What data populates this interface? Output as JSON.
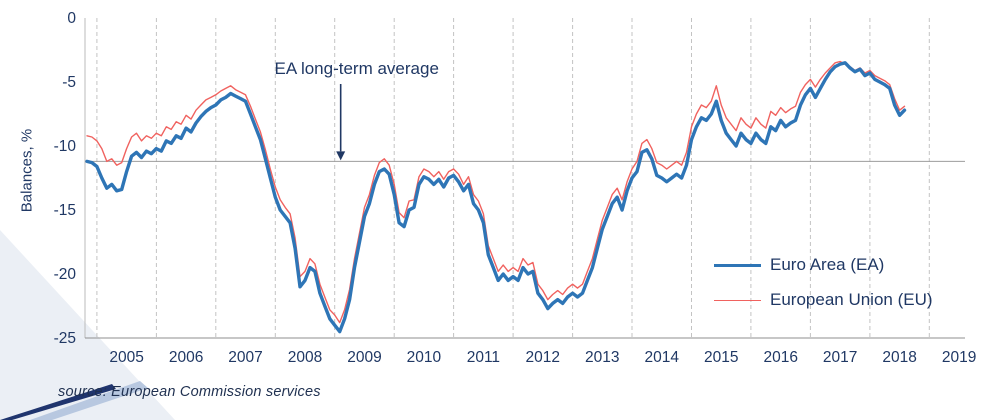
{
  "colors": {
    "accent_navy": "#203864",
    "grid": "#c3c3c3",
    "avg_line": "#9d9d9d",
    "bottom_axis": "#8f8f8f",
    "left_axis": "#bbbbbb"
  },
  "chart_data": {
    "type": "line",
    "title": "",
    "ylabel": "Balances, %",
    "xlim": [
      2004.8,
      2019.6
    ],
    "ylim": [
      -25,
      0
    ],
    "start_year": 2004.8333,
    "points_per_year": 12,
    "gridline_years": [
      2005,
      2006,
      2007,
      2008,
      2009,
      2010,
      2011,
      2012,
      2013,
      2014,
      2015,
      2016,
      2017,
      2018,
      2019
    ],
    "x_tick_labels": [
      2005,
      2006,
      2007,
      2008,
      2009,
      2010,
      2011,
      2012,
      2013,
      2014,
      2015,
      2016,
      2017,
      2018,
      2019
    ],
    "y_ticks": [
      0,
      -5,
      -10,
      -15,
      -20,
      -25
    ],
    "long_term_average": -11.2,
    "annotation": {
      "text": "EA long-term average",
      "arrow_year": 2009.1
    },
    "legend_position": "right-center",
    "series": [
      {
        "name": "Euro Area (EA)",
        "color": "#2e75b6",
        "stroke_width": 3.4,
        "values": [
          -11.2,
          -11.3,
          -11.6,
          -12.5,
          -13.3,
          -13.0,
          -13.5,
          -13.4,
          -12.0,
          -10.8,
          -10.5,
          -10.9,
          -10.4,
          -10.6,
          -10.2,
          -10.4,
          -9.6,
          -9.8,
          -9.2,
          -9.4,
          -8.6,
          -8.9,
          -8.2,
          -7.7,
          -7.3,
          -7.0,
          -6.8,
          -6.4,
          -6.2,
          -5.9,
          -6.1,
          -6.3,
          -6.5,
          -7.5,
          -8.5,
          -9.5,
          -11.0,
          -12.5,
          -14.0,
          -15.0,
          -15.5,
          -16.0,
          -18.0,
          -21.0,
          -20.5,
          -19.5,
          -19.8,
          -21.5,
          -22.5,
          -23.5,
          -24.0,
          -24.5,
          -23.5,
          -22.0,
          -19.5,
          -17.5,
          -15.5,
          -14.5,
          -13.0,
          -12.0,
          -11.8,
          -12.2,
          -13.8,
          -16.0,
          -16.3,
          -15.0,
          -14.8,
          -13.0,
          -12.4,
          -12.6,
          -13.0,
          -12.6,
          -13.2,
          -12.5,
          -12.3,
          -12.8,
          -13.5,
          -13.0,
          -14.5,
          -15.0,
          -16.0,
          -18.5,
          -19.5,
          -20.5,
          -20.0,
          -20.5,
          -20.2,
          -20.5,
          -19.5,
          -20.0,
          -19.8,
          -21.5,
          -22.0,
          -22.7,
          -22.3,
          -22.0,
          -22.3,
          -21.8,
          -21.5,
          -21.8,
          -21.5,
          -20.5,
          -19.5,
          -18.0,
          -16.5,
          -15.5,
          -14.5,
          -14.0,
          -15.0,
          -13.5,
          -12.5,
          -12.0,
          -10.5,
          -10.3,
          -11.0,
          -12.3,
          -12.5,
          -12.8,
          -12.5,
          -12.2,
          -12.5,
          -11.5,
          -9.5,
          -8.5,
          -7.8,
          -8.0,
          -7.5,
          -6.5,
          -8.0,
          -9.0,
          -9.5,
          -10.0,
          -9.0,
          -9.5,
          -9.8,
          -9.0,
          -9.5,
          -9.8,
          -8.5,
          -8.8,
          -8.0,
          -8.5,
          -8.2,
          -8.0,
          -6.8,
          -6.0,
          -5.5,
          -6.2,
          -5.5,
          -4.8,
          -4.2,
          -3.8,
          -3.6,
          -3.5,
          -3.9,
          -4.2,
          -4.0,
          -4.5,
          -4.3,
          -4.8,
          -5.0,
          -5.2,
          -5.5,
          -6.8,
          -7.6,
          -7.2
        ]
      },
      {
        "name": "European Union (EU)",
        "color": "#f0625f",
        "stroke_width": 1.4,
        "values": [
          -9.2,
          -9.3,
          -9.6,
          -10.2,
          -11.2,
          -11.0,
          -11.5,
          -11.3,
          -10.2,
          -9.3,
          -9.0,
          -9.6,
          -9.2,
          -9.4,
          -9.0,
          -9.2,
          -8.5,
          -8.7,
          -8.1,
          -8.3,
          -7.6,
          -7.9,
          -7.2,
          -6.8,
          -6.4,
          -6.2,
          -6.0,
          -5.7,
          -5.5,
          -5.3,
          -5.6,
          -5.8,
          -6.0,
          -6.9,
          -7.9,
          -8.9,
          -10.3,
          -11.8,
          -13.2,
          -14.2,
          -14.8,
          -15.3,
          -17.2,
          -20.2,
          -19.8,
          -18.8,
          -19.2,
          -20.8,
          -21.8,
          -22.8,
          -23.2,
          -23.8,
          -22.8,
          -21.2,
          -18.8,
          -16.8,
          -14.8,
          -13.8,
          -12.3,
          -11.3,
          -11.0,
          -11.5,
          -13.0,
          -15.2,
          -15.6,
          -14.3,
          -14.2,
          -12.4,
          -11.8,
          -12.0,
          -12.4,
          -12.0,
          -12.6,
          -12.0,
          -11.8,
          -12.2,
          -13.0,
          -12.4,
          -13.8,
          -14.3,
          -15.3,
          -17.8,
          -18.8,
          -19.8,
          -19.3,
          -19.8,
          -19.5,
          -19.8,
          -18.8,
          -19.3,
          -19.1,
          -20.8,
          -21.3,
          -22.0,
          -21.6,
          -21.3,
          -21.6,
          -21.1,
          -20.8,
          -21.1,
          -20.8,
          -19.8,
          -18.8,
          -17.3,
          -15.8,
          -14.8,
          -13.8,
          -13.3,
          -14.2,
          -12.8,
          -11.8,
          -11.2,
          -9.8,
          -9.5,
          -10.2,
          -11.3,
          -11.5,
          -11.8,
          -11.5,
          -11.2,
          -11.5,
          -10.5,
          -8.5,
          -7.5,
          -6.8,
          -7.0,
          -6.5,
          -5.3,
          -6.8,
          -7.8,
          -8.3,
          -8.8,
          -7.8,
          -8.3,
          -8.6,
          -7.8,
          -8.3,
          -8.6,
          -7.3,
          -7.6,
          -7.0,
          -7.4,
          -7.1,
          -6.9,
          -5.8,
          -5.2,
          -4.8,
          -5.4,
          -4.8,
          -4.3,
          -3.9,
          -3.5,
          -3.4,
          -3.6,
          -3.8,
          -4.1,
          -3.9,
          -4.3,
          -4.1,
          -4.5,
          -4.7,
          -4.9,
          -5.2,
          -6.3,
          -7.2,
          -6.9
        ]
      }
    ]
  },
  "footer": {
    "source": "source: European  Commission  services"
  }
}
